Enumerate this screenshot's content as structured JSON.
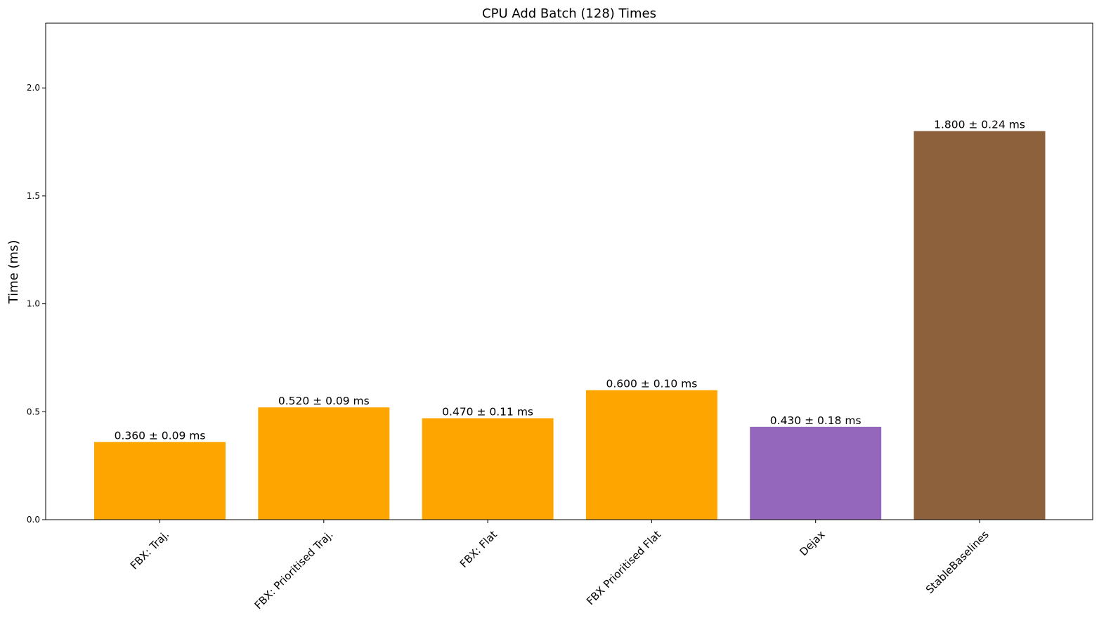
{
  "chart_data": {
    "type": "bar",
    "title": "CPU Add Batch (128) Times",
    "xlabel": "",
    "ylabel": "Time (ms)",
    "ylim": [
      0,
      2.3
    ],
    "yticks": [
      "0.0",
      "0.5",
      "1.0",
      "1.5",
      "2.0"
    ],
    "grid": false,
    "categories": [
      "FBX: Traj.",
      "FBX: Prioritised Traj.",
      "FBX: Flat",
      "FBX Prioritised Flat",
      "Dejax",
      "StableBaselines"
    ],
    "values": [
      0.36,
      0.52,
      0.47,
      0.6,
      0.43,
      1.8
    ],
    "errors": [
      0.09,
      0.09,
      0.11,
      0.1,
      0.18,
      0.24
    ],
    "bar_labels": [
      "0.360 ± 0.09 ms",
      "0.520 ± 0.09 ms",
      "0.470 ± 0.11 ms",
      "0.600 ± 0.10 ms",
      "0.430 ± 0.18 ms",
      "1.800 ± 0.24 ms"
    ],
    "colors": [
      "#ffa500",
      "#ffa500",
      "#ffa500",
      "#ffa500",
      "#9467bd",
      "#8c613c"
    ]
  }
}
